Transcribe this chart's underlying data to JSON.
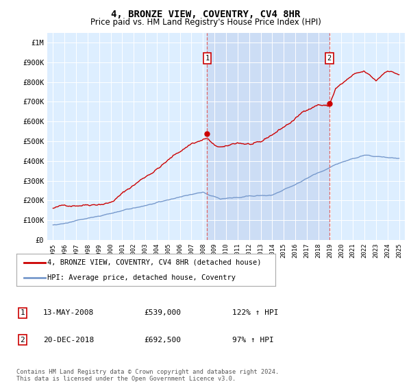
{
  "title": "4, BRONZE VIEW, COVENTRY, CV4 8HR",
  "subtitle": "Price paid vs. HM Land Registry's House Price Index (HPI)",
  "legend_line1": "4, BRONZE VIEW, COVENTRY, CV4 8HR (detached house)",
  "legend_line2": "HPI: Average price, detached house, Coventry",
  "annotation1_date": "13-MAY-2008",
  "annotation1_price": "£539,000",
  "annotation1_hpi": "122% ↑ HPI",
  "annotation2_date": "20-DEC-2018",
  "annotation2_price": "£692,500",
  "annotation2_hpi": "97% ↑ HPI",
  "footer": "Contains HM Land Registry data © Crown copyright and database right 2024.\nThis data is licensed under the Open Government Licence v3.0.",
  "vline1_x": 2008.36,
  "vline2_x": 2018.96,
  "sale1_x": 2008.36,
  "sale1_y": 539000,
  "sale2_x": 2018.96,
  "sale2_y": 692500,
  "ylim_min": 0,
  "ylim_max": 1050000,
  "xlim_min": 1994.5,
  "xlim_max": 2025.5,
  "red_color": "#cc0000",
  "blue_color": "#7799cc",
  "highlight_color": "#ccddf5",
  "background_color": "#ddeeff",
  "yticks": [
    0,
    100000,
    200000,
    300000,
    400000,
    500000,
    600000,
    700000,
    800000,
    900000,
    1000000
  ],
  "ytick_labels": [
    "£0",
    "£100K",
    "£200K",
    "£300K",
    "£400K",
    "£500K",
    "£600K",
    "£700K",
    "£800K",
    "£900K",
    "£1M"
  ]
}
